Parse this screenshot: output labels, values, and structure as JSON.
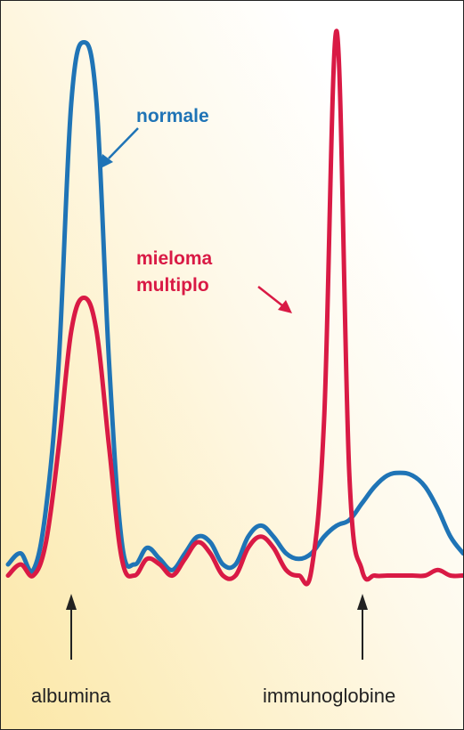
{
  "chart_data": {
    "type": "line",
    "title": "",
    "xlabel": "",
    "ylabel": "",
    "grid": false,
    "legend": "none",
    "x_annotations": [
      "albumina",
      "immunoglobine"
    ],
    "series": [
      {
        "name": "normale",
        "color": "#1f74b6",
        "points": [
          [
            0,
            4
          ],
          [
            1,
            6
          ],
          [
            2,
            3
          ],
          [
            3,
            14
          ],
          [
            4,
            40
          ],
          [
            5,
            87
          ],
          [
            6,
            98
          ],
          [
            7,
            87
          ],
          [
            8,
            40
          ],
          [
            9,
            8
          ],
          [
            10,
            4
          ],
          [
            11,
            7
          ],
          [
            12,
            5
          ],
          [
            13,
            3
          ],
          [
            14,
            6
          ],
          [
            15,
            9
          ],
          [
            16,
            8
          ],
          [
            17,
            4
          ],
          [
            18,
            4
          ],
          [
            19,
            9
          ],
          [
            20,
            11
          ],
          [
            21,
            9
          ],
          [
            22,
            6
          ],
          [
            23,
            5
          ],
          [
            24,
            6
          ],
          [
            25,
            9
          ],
          [
            26,
            11
          ],
          [
            27,
            12
          ],
          [
            28,
            15
          ],
          [
            29,
            18
          ],
          [
            30,
            20
          ],
          [
            31,
            20.5
          ],
          [
            32,
            20
          ],
          [
            33,
            18
          ],
          [
            34,
            14
          ],
          [
            35,
            9
          ],
          [
            36,
            6
          ]
        ]
      },
      {
        "name": "mieloma multiplo",
        "color": "#d91a45",
        "points": [
          [
            0,
            2
          ],
          [
            1,
            4
          ],
          [
            2,
            2
          ],
          [
            3,
            8
          ],
          [
            4,
            25
          ],
          [
            5,
            46
          ],
          [
            6,
            52
          ],
          [
            7,
            46
          ],
          [
            8,
            25
          ],
          [
            9,
            5
          ],
          [
            10,
            2
          ],
          [
            11,
            5
          ],
          [
            12,
            4
          ],
          [
            13,
            2
          ],
          [
            14,
            5
          ],
          [
            15,
            8
          ],
          [
            16,
            6
          ],
          [
            17,
            2
          ],
          [
            18,
            2
          ],
          [
            19,
            7
          ],
          [
            20,
            9
          ],
          [
            21,
            7
          ],
          [
            22,
            3
          ],
          [
            23,
            2
          ],
          [
            24,
            3
          ],
          [
            25,
            30
          ],
          [
            26,
            100
          ],
          [
            27,
            20
          ],
          [
            28,
            3
          ],
          [
            29,
            2
          ],
          [
            30,
            2
          ],
          [
            31,
            2
          ],
          [
            32,
            2
          ],
          [
            33,
            2
          ],
          [
            34,
            3
          ],
          [
            35,
            2
          ],
          [
            36,
            2
          ]
        ]
      }
    ],
    "annotations": [
      {
        "text": "normale",
        "color": "#1f74b6"
      },
      {
        "text": "mieloma",
        "color": "#d91a45"
      },
      {
        "text": "multiplo",
        "color": "#d91a45"
      }
    ]
  }
}
